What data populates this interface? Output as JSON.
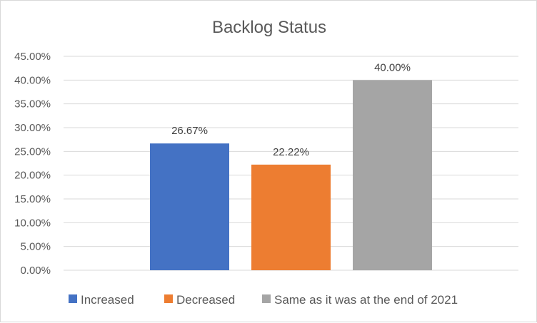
{
  "chart_data": {
    "type": "bar",
    "title": "Backlog Status",
    "xlabel": "",
    "ylabel": "",
    "ylim": [
      0,
      0.45
    ],
    "y_ticks": [
      0,
      0.05,
      0.1,
      0.15,
      0.2,
      0.25,
      0.3,
      0.35,
      0.4,
      0.45
    ],
    "y_tick_labels": [
      "0.00%",
      "5.00%",
      "10.00%",
      "15.00%",
      "20.00%",
      "25.00%",
      "30.00%",
      "35.00%",
      "40.00%",
      "45.00%"
    ],
    "grid": true,
    "legend_position": "bottom",
    "series": [
      {
        "name": "Increased",
        "value": 0.2667,
        "label": "26.67%",
        "color": "#4472C4"
      },
      {
        "name": "Decreased",
        "value": 0.2222,
        "label": "22.22%",
        "color": "#ED7D31"
      },
      {
        "name": "Same as it was at the end of 2021",
        "value": 0.4,
        "label": "40.00%",
        "color": "#A5A5A5"
      }
    ]
  }
}
